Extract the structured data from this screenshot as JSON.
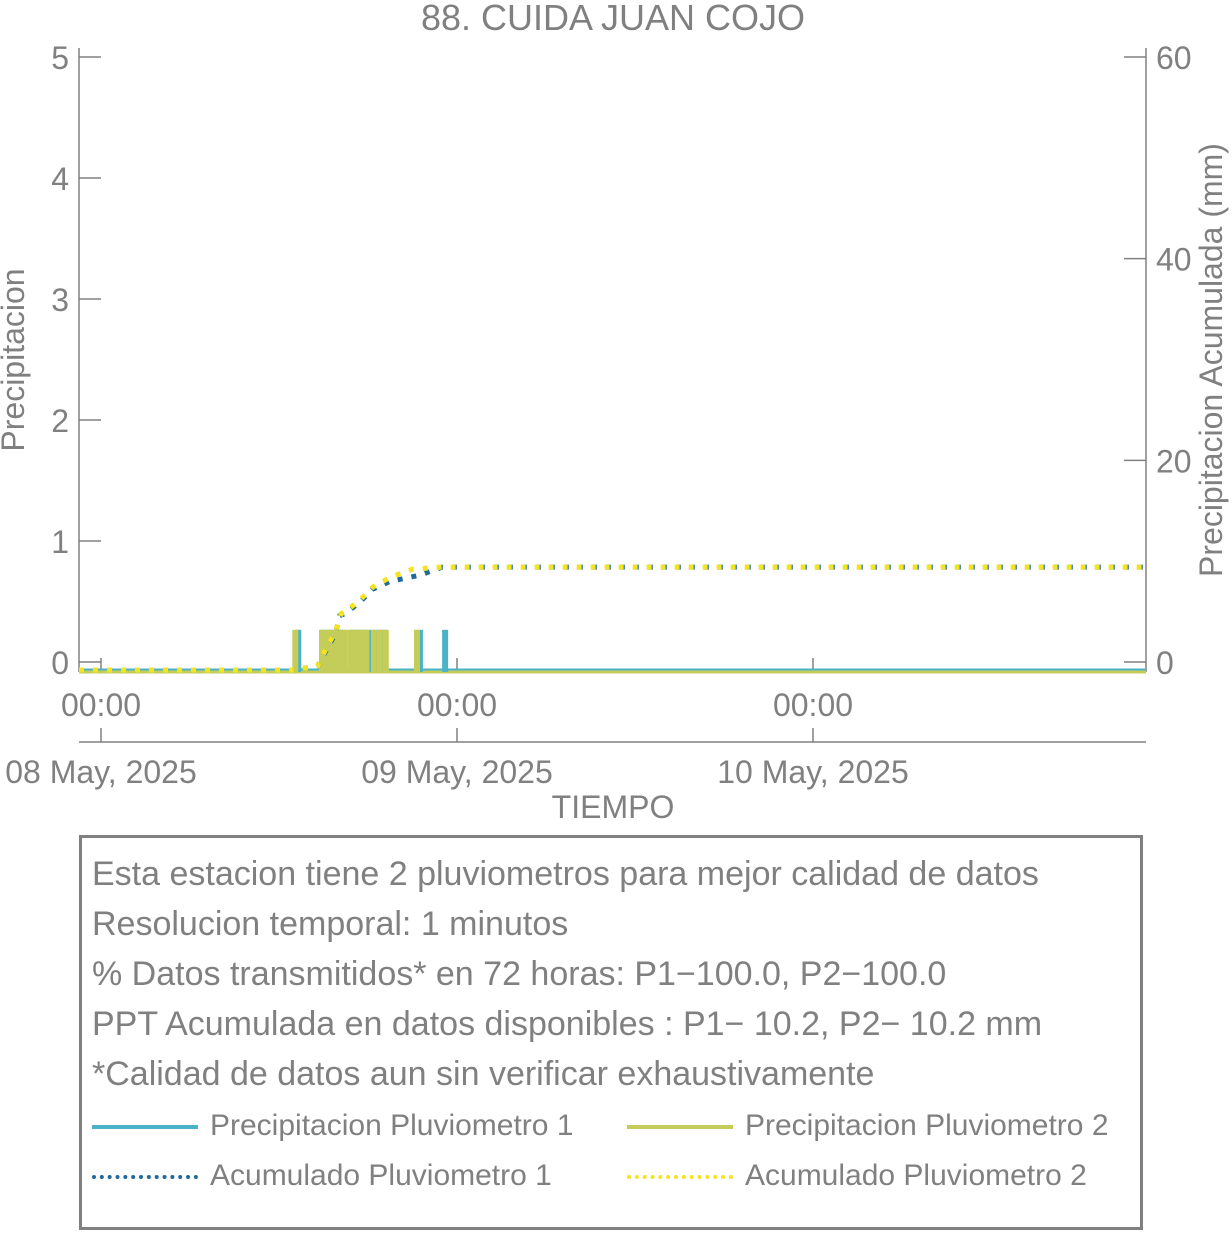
{
  "colors": {
    "p1": "#4bb3c6",
    "p2": "#c4cc5a",
    "acc1": "#1f6a9a",
    "acc2": "#f5e31f",
    "axis": "#808080"
  },
  "chart_data": {
    "type": "bar",
    "title": "88. CUIDA JUAN COJO",
    "xlabel": "TIEMPO",
    "ylabel": "Precipitacion",
    "y2label": "Precipitacion Acumulada (mm)",
    "ylim": [
      0,
      5
    ],
    "y2lim": [
      0,
      60
    ],
    "yticks": [
      "0",
      "1",
      "2",
      "3",
      "4",
      "5"
    ],
    "y2ticks": [
      "0",
      "20",
      "40",
      "60"
    ],
    "xticks": [
      {
        "time": "00:00",
        "date": "08 May, 2025",
        "hour": 0
      },
      {
        "time": "00:00",
        "date": "09 May, 2025",
        "hour": 24
      },
      {
        "time": "00:00",
        "date": "10 May, 2025",
        "hour": 48
      }
    ],
    "xlim_hours": [
      -1.5,
      70.5
    ],
    "grid": false,
    "series": [
      {
        "name": "Precipitacion Pluviometro 1",
        "kind": "bars",
        "axis": "left",
        "x_hours": [
          13.3,
          15.0,
          15.4,
          15.7,
          16.0,
          16.3,
          16.9,
          17.2,
          17.5,
          17.8,
          18.3,
          18.7,
          19.1,
          21.5,
          23.2
        ],
        "values": [
          0.2,
          0.2,
          0.2,
          0.2,
          0.2,
          0.2,
          0.2,
          0.2,
          0.2,
          0.2,
          0.2,
          0.2,
          0.2,
          0.2,
          0.2
        ]
      },
      {
        "name": "Precipitacion Pluviometro 2",
        "kind": "bars",
        "axis": "left",
        "x_hours": [
          13.1,
          14.9,
          15.2,
          15.5,
          15.8,
          16.1,
          16.4,
          16.8,
          17.0,
          17.3,
          17.6,
          17.9,
          18.4,
          18.8,
          19.2,
          21.3
        ],
        "values": [
          0.2,
          0.2,
          0.2,
          0.2,
          0.2,
          0.2,
          0.2,
          0.2,
          0.2,
          0.2,
          0.2,
          0.2,
          0.2,
          0.2,
          0.2,
          0.2
        ]
      },
      {
        "name": "Acumulado Pluviometro 1",
        "kind": "dotted",
        "axis": "right",
        "x_hours": [
          -1.5,
          13.0,
          14.6,
          15.2,
          15.8,
          16.1,
          16.5,
          17.5,
          18.3,
          19.5,
          21.5,
          23.0,
          70.5
        ],
        "values": [
          0,
          0,
          0.4,
          2.0,
          3.6,
          5.4,
          5.6,
          6.8,
          8.0,
          8.8,
          9.4,
          10.2,
          10.2
        ]
      },
      {
        "name": "Acumulado Pluviometro 2",
        "kind": "dotted",
        "axis": "right",
        "x_hours": [
          -1.5,
          13.0,
          14.6,
          15.2,
          15.8,
          16.2,
          16.5,
          17.5,
          18.3,
          19.5,
          21.0,
          23.0,
          70.5
        ],
        "values": [
          0,
          0,
          0.4,
          2.2,
          3.8,
          5.6,
          5.8,
          7.0,
          8.2,
          9.2,
          10.0,
          10.2,
          10.2
        ]
      }
    ]
  },
  "info": {
    "line1": "Esta estacion tiene 2 pluviometros para mejor calidad de datos",
    "line2": "Resolucion temporal: 1 minutos",
    "line3": "% Datos transmitidos* en 72 horas: P1−100.0, P2−100.0",
    "line4": "PPT Acumulada en datos disponibles : P1− 10.2, P2− 10.2 mm",
    "line5": "*Calidad de datos aun sin verificar exhaustivamente"
  },
  "legend": {
    "p1": "Precipitacion Pluviometro 1",
    "p2": "Precipitacion Pluviometro 2",
    "acc1": "Acumulado Pluviometro 1",
    "acc2": "Acumulado Pluviometro 2"
  }
}
